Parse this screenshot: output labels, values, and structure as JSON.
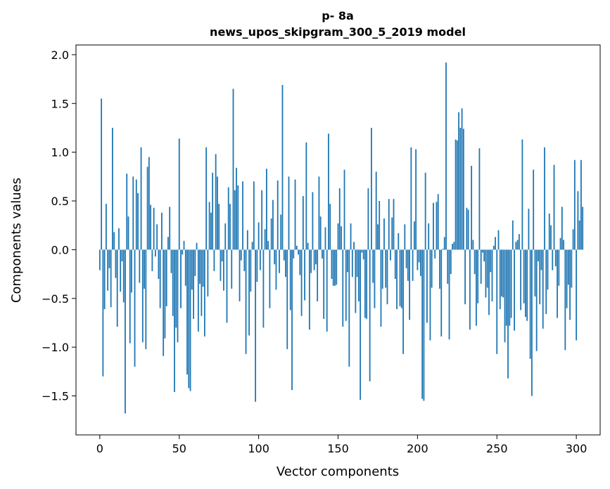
{
  "chart_data": {
    "type": "bar",
    "title_line1": "p- 8a",
    "title_line2": "news_upos_skipgram_300_5_2019 model",
    "xlabel": "Vector components",
    "ylabel": "Components values",
    "xlim": [
      -15,
      315
    ],
    "ylim": [
      -1.9,
      2.1
    ],
    "x_ticks": [
      0,
      50,
      100,
      150,
      200,
      250,
      300
    ],
    "x_tick_labels": [
      "0",
      "50",
      "100",
      "150",
      "200",
      "250",
      "300"
    ],
    "y_ticks": [
      -1.5,
      -1.0,
      -0.5,
      0.0,
      0.5,
      1.0,
      1.5,
      2.0
    ],
    "y_tick_labels": [
      "−1.5",
      "−1.0",
      "−0.5",
      "0.0",
      "0.5",
      "1.0",
      "1.5",
      "2.0"
    ],
    "bar_color": "#1f77b4",
    "grid": false,
    "values": [
      -0.21,
      1.55,
      -1.3,
      -0.61,
      0.47,
      -0.42,
      -0.19,
      -0.59,
      1.25,
      0.18,
      -0.29,
      -0.79,
      0.22,
      -0.43,
      -0.12,
      -0.54,
      -1.68,
      0.78,
      0.34,
      -0.96,
      -0.44,
      0.75,
      -1.2,
      0.72,
      0.58,
      -0.34,
      1.05,
      -0.95,
      -0.4,
      -1.02,
      0.85,
      0.95,
      0.46,
      -0.22,
      0.43,
      -0.07,
      0.26,
      -0.3,
      -0.6,
      0.38,
      -1.09,
      -0.91,
      -0.58,
      0.13,
      0.44,
      -0.24,
      -0.68,
      -1.46,
      -0.8,
      -0.95,
      1.14,
      -0.6,
      -0.05,
      0.09,
      -0.37,
      -1.28,
      -1.42,
      -1.45,
      -0.41,
      -0.71,
      -0.27,
      0.07,
      -0.84,
      -0.35,
      -0.68,
      -0.38,
      -0.89,
      1.05,
      -0.48,
      0.49,
      0.38,
      0.79,
      -0.22,
      0.98,
      0.75,
      0.47,
      -0.32,
      -0.12,
      -0.42,
      0.27,
      -0.75,
      0.64,
      0.47,
      -0.4,
      1.65,
      0.61,
      0.84,
      0.66,
      -0.53,
      -0.11,
      0.7,
      -0.22,
      -1.07,
      0.2,
      -0.88,
      -0.43,
      0.08,
      0.7,
      -1.56,
      -0.33,
      0.28,
      -0.21,
      0.61,
      -0.8,
      0.21,
      0.83,
      0.09,
      -0.6,
      0.32,
      0.51,
      -0.15,
      -0.41,
      0.71,
      -0.24,
      0.36,
      1.69,
      -0.11,
      -0.28,
      -1.02,
      0.75,
      -0.62,
      -1.44,
      -0.09,
      0.72,
      0.04,
      -0.05,
      -0.26,
      -0.68,
      0.55,
      -0.52,
      1.1,
      0.07,
      -0.82,
      -0.24,
      0.59,
      -0.21,
      -0.15,
      -0.53,
      0.75,
      0.34,
      -0.09,
      -0.71,
      0.23,
      -0.84,
      1.19,
      0.47,
      -0.3,
      -0.37,
      -0.37,
      -0.36,
      0.27,
      0.63,
      0.24,
      -0.79,
      0.82,
      -0.73,
      -0.23,
      -1.2,
      0.27,
      -0.28,
      0.08,
      -0.65,
      -0.28,
      -0.53,
      -1.54,
      -0.03,
      -0.1,
      -0.7,
      -0.71,
      0.63,
      -1.35,
      1.25,
      -0.34,
      -0.6,
      0.8,
      0.26,
      0.5,
      -0.79,
      -0.4,
      0.32,
      -0.39,
      -0.56,
      0.52,
      -0.11,
      0.33,
      0.52,
      -0.3,
      -0.61,
      0.17,
      -0.58,
      -0.6,
      -1.07,
      0.26,
      -0.19,
      -0.32,
      -0.72,
      1.05,
      -0.32,
      0.29,
      1.03,
      -0.21,
      -0.13,
      -0.27,
      -1.53,
      -1.55,
      0.79,
      -0.75,
      0.27,
      -0.93,
      -0.39,
      0.48,
      -0.09,
      0.49,
      0.57,
      -0.4,
      -0.89,
      0.01,
      0.13,
      1.92,
      -0.35,
      -0.92,
      -0.25,
      0.06,
      0.08,
      1.13,
      1.12,
      1.41,
      1.25,
      1.45,
      1.24,
      -0.56,
      0.43,
      0.41,
      -0.82,
      0.86,
      0.1,
      -0.25,
      -0.78,
      -0.55,
      1.04,
      -0.35,
      -0.03,
      -0.12,
      -0.49,
      -0.39,
      -0.67,
      -0.23,
      -0.53,
      0.04,
      0.13,
      -1.07,
      0.2,
      -0.61,
      -0.48,
      -0.49,
      -0.95,
      -0.78,
      -1.32,
      -0.78,
      -0.7,
      0.3,
      -0.83,
      0.08,
      0.1,
      0.16,
      -0.62,
      1.13,
      -0.55,
      -0.69,
      -0.73,
      0.42,
      -1.12,
      -1.5,
      0.82,
      -0.48,
      -1.04,
      -0.12,
      -0.56,
      -0.21,
      -0.81,
      1.05,
      -0.66,
      -0.41,
      0.37,
      0.25,
      -0.21,
      0.87,
      -0.17,
      -0.7,
      -0.37,
      0.12,
      0.44,
      0.1,
      -1.03,
      -0.6,
      -0.36,
      -0.72,
      -0.39,
      0.21,
      0.92,
      -0.93,
      0.6,
      0.3,
      0.92,
      0.44
    ]
  }
}
